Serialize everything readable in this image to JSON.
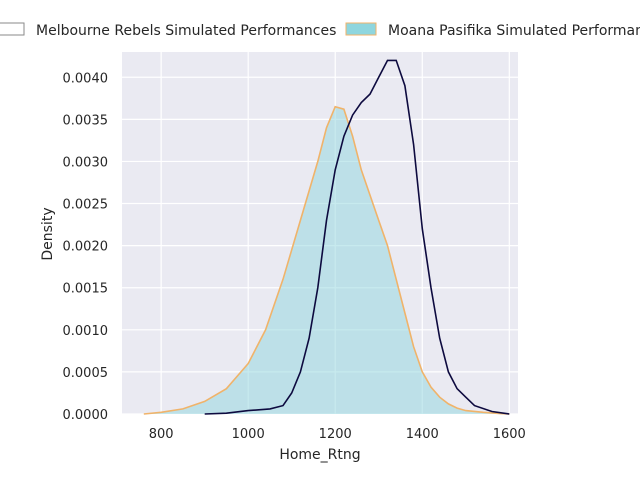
{
  "chart_data": {
    "type": "area",
    "title": "",
    "xlabel": "Home_Rtng",
    "ylabel": "Density",
    "xlim": [
      710,
      1620
    ],
    "ylim": [
      0,
      0.0043
    ],
    "xticks": [
      800,
      1000,
      1200,
      1400,
      1600
    ],
    "xtick_labels": [
      "800",
      "1000",
      "1200",
      "1400",
      "1600"
    ],
    "yticks": [
      0,
      0.0005,
      0.001,
      0.0015,
      0.002,
      0.0025,
      0.003,
      0.0035,
      0.004
    ],
    "ytick_labels": [
      "0.0000",
      "0.0005",
      "0.0010",
      "0.0015",
      "0.0020",
      "0.0025",
      "0.0030",
      "0.0035",
      "0.0040"
    ],
    "grid": true,
    "legend_position": "top (outside, above plot)",
    "background_color": "#eaeaf2",
    "series": [
      {
        "name": "Melbourne Rebels Simulated Performances",
        "style": "line",
        "color": "#0d0a3f",
        "x": [
          900,
          950,
          1000,
          1050,
          1080,
          1100,
          1120,
          1140,
          1160,
          1180,
          1200,
          1220,
          1240,
          1260,
          1280,
          1300,
          1320,
          1340,
          1360,
          1380,
          1400,
          1420,
          1440,
          1460,
          1480,
          1500,
          1520,
          1560,
          1600
        ],
        "y": [
          0.0,
          1e-05,
          4e-05,
          6e-05,
          0.0001,
          0.00025,
          0.0005,
          0.0009,
          0.0015,
          0.0023,
          0.0029,
          0.0033,
          0.00355,
          0.0037,
          0.0038,
          0.004,
          0.0042,
          0.0042,
          0.0039,
          0.0032,
          0.0022,
          0.0015,
          0.0009,
          0.0005,
          0.0003,
          0.0002,
          0.0001,
          3e-05,
          0.0
        ]
      },
      {
        "name": "Moana Pasifika Simulated Performances",
        "style": "filled",
        "color": "#f0b36a",
        "fill": "#8fd6de",
        "x": [
          760,
          800,
          850,
          900,
          950,
          1000,
          1040,
          1080,
          1120,
          1160,
          1180,
          1200,
          1220,
          1240,
          1260,
          1280,
          1300,
          1320,
          1340,
          1360,
          1380,
          1400,
          1420,
          1440,
          1460,
          1480,
          1500,
          1540,
          1580,
          1600
        ],
        "y": [
          0.0,
          2e-05,
          6e-05,
          0.00015,
          0.0003,
          0.0006,
          0.001,
          0.0016,
          0.0023,
          0.003,
          0.0034,
          0.00365,
          0.00362,
          0.0033,
          0.0029,
          0.0026,
          0.0023,
          0.002,
          0.0016,
          0.0012,
          0.0008,
          0.0005,
          0.00032,
          0.0002,
          0.00012,
          7e-05,
          4e-05,
          2e-05,
          5e-06,
          0.0
        ]
      }
    ]
  }
}
